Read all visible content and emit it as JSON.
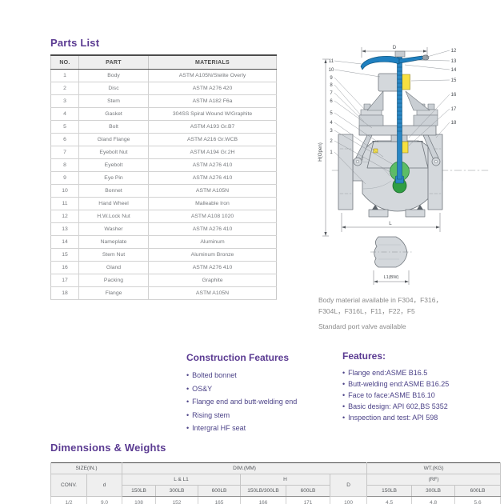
{
  "sections": {
    "parts_list_title": "Parts List",
    "construction_title": "Construction Features",
    "features_title": "Features:",
    "dimensions_title": "Dimensions & Weights"
  },
  "parts_table": {
    "headers": [
      "NO.",
      "PART",
      "MATERIALS"
    ],
    "rows": [
      [
        "1",
        "Body",
        "ASTM A105N/Stelite Overly"
      ],
      [
        "2",
        "Disc",
        "ASTM A276 420"
      ],
      [
        "3",
        "Stem",
        "ASTM A182 F6a"
      ],
      [
        "4",
        "Gasket",
        "304SS Spiral Wound W/Graphite"
      ],
      [
        "5",
        "Bolt",
        "ASTM A193 Gr.B7"
      ],
      [
        "6",
        "Gland Flange",
        "ASTM A216 Gr.WCB"
      ],
      [
        "7",
        "Eyebolt Nut",
        "ASTM A194 Gr.2H"
      ],
      [
        "8",
        "Eyebolt",
        "ASTM A276 410"
      ],
      [
        "9",
        "Eye Pin",
        "ASTM A276 410"
      ],
      [
        "10",
        "Bonnet",
        "ASTM A105N"
      ],
      [
        "11",
        "Hand Wheel",
        "Malleable Iron"
      ],
      [
        "12",
        "H.W.Lock Nut",
        "ASTM A108 1020"
      ],
      [
        "13",
        "Washer",
        "ASTM A276 410"
      ],
      [
        "14",
        "Nameplate",
        "Aluminum"
      ],
      [
        "15",
        "Stem Nut",
        "Aluminum Bronze"
      ],
      [
        "16",
        "Gland",
        "ASTM A276 410"
      ],
      [
        "17",
        "Packing",
        "Graphite"
      ],
      [
        "18",
        "Flange",
        "ASTM A105N"
      ]
    ]
  },
  "diagram": {
    "callouts_left": [
      "11",
      "10",
      "9",
      "8",
      "7",
      "6",
      "5",
      "4",
      "3",
      "2",
      "1"
    ],
    "callouts_right": [
      "12",
      "13",
      "14",
      "15",
      "16",
      "17",
      "18"
    ],
    "dims": {
      "top": "D",
      "left": "H(Open)",
      "bottom": "L",
      "bw": "L1(BW)"
    },
    "note_line1": "Body material available in F304，F316，",
    "note_line2": "F304L，F316L，F11，F22，F5",
    "note_line3": "Standard port valve available",
    "colors": {
      "handwheel_blue": "#1f80c0",
      "stem_blue": "#2a86c4",
      "disc_green": "#3fae49",
      "nut_yellow": "#f7e040",
      "body_gray": "#d4d8dc",
      "accent_purple": "#5b3b92"
    }
  },
  "construction_features": [
    "Bolted bonnet",
    "OS&Y",
    "Flange end and butt-welding end",
    "Rising stem",
    "Intergral HF seat"
  ],
  "features": [
    "Flange end:ASME B16.5",
    "Butt-welding end:ASME B16.25",
    "Face to face:ASME B16.10",
    "Basic design: API 602,BS 5352",
    "Inspection and test: API 598"
  ],
  "dim_table": {
    "groups": [
      "SIZE(IN.)",
      "DIM.(MM)",
      "WT.(KG)"
    ],
    "sub": {
      "conv": "CONV.",
      "d": "d",
      "l_l1": "L & L1",
      "h": "H",
      "d_col": "D",
      "rf": "(RF)"
    },
    "class_cols": [
      "150LB",
      "300LB",
      "600LB",
      "150LB/300LB",
      "600LB",
      "150LB",
      "300LB",
      "600LB"
    ],
    "rows": [
      [
        "1/2",
        "9.0",
        "108",
        "152",
        "165",
        "166",
        "171",
        "100",
        "4.5",
        "4.8",
        "5.6"
      ]
    ]
  }
}
